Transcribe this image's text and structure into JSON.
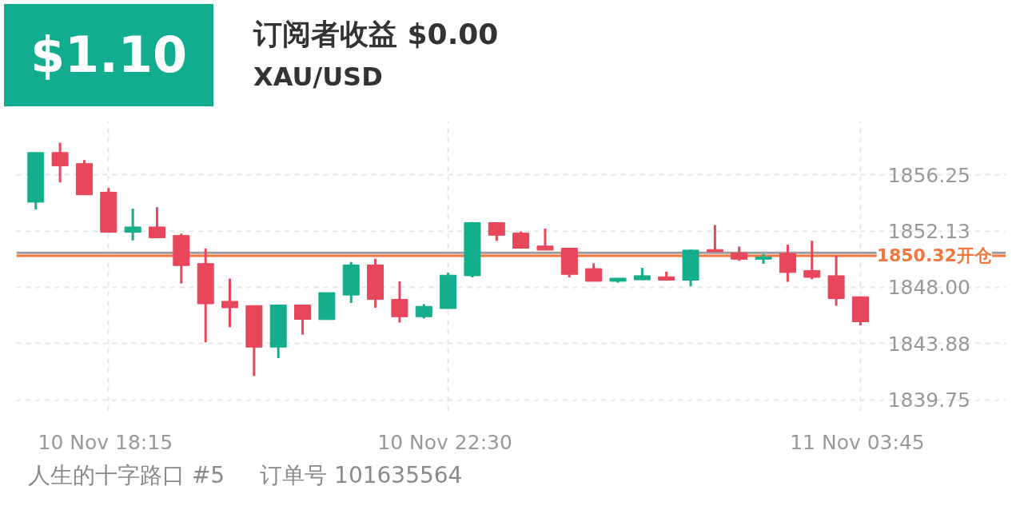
{
  "chart_data": {
    "type": "candlestick",
    "title": "订阅者收益 $0.00",
    "subtitle": "XAU/USD",
    "annotations": [
      "$1.10",
      "人生的十字路口 #5",
      "订单号 101635564"
    ],
    "categories": [
      null,
      null,
      null,
      "10 Nov  18:15",
      null,
      null,
      null,
      null,
      null,
      null,
      null,
      null,
      null,
      null,
      null,
      null,
      null,
      "10 Nov  22:30",
      null,
      null,
      null,
      null,
      null,
      null,
      null,
      null,
      null,
      null,
      null,
      null,
      null,
      null,
      null,
      null,
      "11 Nov  03:45"
    ],
    "ohlc": [
      [
        1854.25,
        1857.89,
        1853.72,
        1857.89
      ],
      [
        1857.89,
        1858.62,
        1855.7,
        1856.92
      ],
      [
        1857.08,
        1857.34,
        1854.79,
        1854.79
      ],
      [
        1854.98,
        1855.28,
        1852.04,
        1852.04
      ],
      [
        1852.04,
        1853.78,
        1851.44,
        1852.43
      ],
      [
        1852.43,
        1853.88,
        1851.64,
        1851.64
      ],
      [
        1851.8,
        1851.94,
        1848.28,
        1849.6
      ],
      [
        1849.74,
        1850.85,
        1843.96,
        1846.79
      ],
      [
        1846.97,
        1848.63,
        1845.07,
        1846.5
      ],
      [
        1846.66,
        1846.66,
        1841.49,
        1843.61
      ],
      [
        1843.61,
        1846.7,
        1842.8,
        1846.7
      ],
      [
        1846.7,
        1846.7,
        1844.52,
        1845.65
      ],
      [
        1845.63,
        1847.61,
        1845.63,
        1847.61
      ],
      [
        1847.43,
        1849.86,
        1846.85,
        1849.64
      ],
      [
        1849.64,
        1850.1,
        1846.5,
        1847.11
      ],
      [
        1847.11,
        1848.44,
        1845.41,
        1845.84
      ],
      [
        1845.84,
        1846.77,
        1845.71,
        1846.6
      ],
      [
        1846.44,
        1849.07,
        1846.44,
        1848.89
      ],
      [
        1848.85,
        1852.79,
        1848.73,
        1852.75
      ],
      [
        1852.75,
        1852.75,
        1851.4,
        1851.82
      ],
      [
        1851.98,
        1852.1,
        1850.87,
        1850.87
      ],
      [
        1851.03,
        1852.31,
        1850.73,
        1850.73
      ],
      [
        1850.87,
        1850.87,
        1848.73,
        1848.95
      ],
      [
        1849.37,
        1849.76,
        1848.44,
        1848.44
      ],
      [
        1848.44,
        1848.67,
        1848.34,
        1848.67
      ],
      [
        1848.55,
        1849.43,
        1848.55,
        1848.85
      ],
      [
        1848.77,
        1849.15,
        1848.52,
        1848.52
      ],
      [
        1848.52,
        1850.77,
        1848.08,
        1850.73
      ],
      [
        1850.77,
        1852.57,
        1850.61,
        1850.61
      ],
      [
        1850.53,
        1850.99,
        1849.94,
        1850.06
      ],
      [
        1850.06,
        1850.45,
        1849.72,
        1850.22
      ],
      [
        1850.49,
        1851.13,
        1848.4,
        1849.09
      ],
      [
        1849.23,
        1851.42,
        1848.59,
        1848.73
      ],
      [
        1848.85,
        1850.32,
        1846.64,
        1847.17
      ],
      [
        1847.31,
        1847.31,
        1845.19,
        1845.47
      ]
    ],
    "colors": [
      "#14ae8c",
      "#e8465a",
      "#e8465a",
      "#e8465a",
      "#14ae8c",
      "#e8465a",
      "#e8465a",
      "#e8465a",
      "#e8465a",
      "#e8465a",
      "#14ae8c",
      "#e8465a",
      "#14ae8c",
      "#14ae8c",
      "#e8465a",
      "#e8465a",
      "#14ae8c",
      "#14ae8c",
      "#14ae8c",
      "#e8465a",
      "#e8465a",
      "#e8465a",
      "#e8465a",
      "#e8465a",
      "#14ae8c",
      "#14ae8c",
      "#e8465a",
      "#14ae8c",
      "#e8465a",
      "#e8465a",
      "#14ae8c",
      "#e8465a",
      "#e8465a",
      "#e8465a",
      "#e8465a"
    ],
    "ylim": [
      1838.9,
      1860.2
    ],
    "yticks": [
      1839.75,
      1843.88,
      {
        "value": 1848.0,
        "label": "1848.00"
      },
      1852.13,
      1856.25
    ],
    "ref_lines": [
      {
        "axis": "y",
        "value": 1850.53,
        "color": "#9e9e9e"
      },
      {
        "axis": "y",
        "value": 1850.32,
        "label": "1850.32开仓",
        "color": "#f07840"
      }
    ],
    "grid": true
  }
}
